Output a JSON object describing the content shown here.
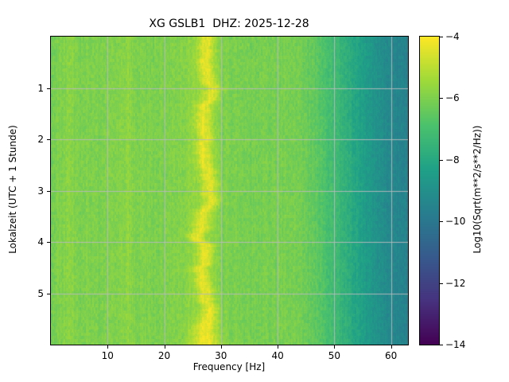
{
  "chart_data": {
    "type": "heatmap",
    "title": "XG GSLB1  DHZ: 2025-12-28",
    "xlabel": "Frequency [Hz]",
    "ylabel": "Lokalzeit (UTC + 1 Stunde)",
    "x_range": [
      0,
      63
    ],
    "x_ticks": [
      10,
      20,
      30,
      40,
      50,
      60
    ],
    "y_range": [
      0,
      6
    ],
    "y_ticks": [
      1,
      2,
      3,
      4,
      5
    ],
    "grid": true,
    "grid_color": "#b9b9bc",
    "colorbar": {
      "label": "Log10(Sqrt(m**2/s**2/Hz))",
      "ticks": [
        -4,
        -6,
        -8,
        -10,
        -12,
        -14
      ],
      "range": [
        -14,
        -4
      ],
      "colormap": "viridis",
      "stops": [
        [
          0.0,
          "#440154"
        ],
        [
          0.14,
          "#46327e"
        ],
        [
          0.29,
          "#365c8d"
        ],
        [
          0.43,
          "#277f8e"
        ],
        [
          0.57,
          "#1fa187"
        ],
        [
          0.71,
          "#4ac16d"
        ],
        [
          0.86,
          "#a0da39"
        ],
        [
          1.0,
          "#fde725"
        ]
      ]
    },
    "baseline_profile": [
      [
        0,
        -6.3
      ],
      [
        1,
        -6.0
      ],
      [
        3,
        -5.9
      ],
      [
        6,
        -6.05
      ],
      [
        10,
        -6.0
      ],
      [
        13,
        -5.9
      ],
      [
        16,
        -6.05
      ],
      [
        20,
        -6.0
      ],
      [
        24,
        -5.8
      ],
      [
        27,
        -5.6
      ],
      [
        30,
        -6.0
      ],
      [
        35,
        -6.1
      ],
      [
        40,
        -6.1
      ],
      [
        44,
        -6.2
      ],
      [
        47,
        -6.6
      ],
      [
        50,
        -7.2
      ],
      [
        53,
        -7.9
      ],
      [
        56,
        -8.6
      ],
      [
        59,
        -9.2
      ],
      [
        63,
        -9.6
      ]
    ],
    "band": {
      "center": 27.2,
      "sigma": 1.0,
      "amp": 1.25,
      "wiggle_amp": 0.45,
      "dip_time": 3.88,
      "dip_amp": -1.6,
      "dip_sigma": 0.08,
      "bottom_widen_start": 5.3
    },
    "striations": [
      {
        "freq": 3.3,
        "amp": 0.22,
        "sigma": 0.5
      },
      {
        "freq": 13.6,
        "amp": 0.25,
        "sigma": 0.4
      },
      {
        "freq": 6.5,
        "amp": 0.12,
        "sigma": 0.4
      },
      {
        "freq": 16.2,
        "amp": 0.12,
        "sigma": 0.35
      }
    ]
  }
}
